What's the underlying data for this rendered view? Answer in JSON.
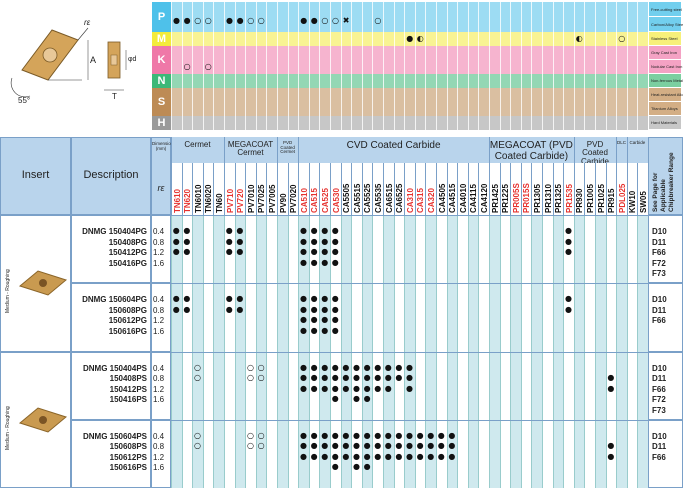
{
  "title": "",
  "iso_rows": [
    {
      "letter": "P",
      "color": "#4ec1ea",
      "sub": [
        {
          "label": "Free-cutting steel",
          "color": "#72cfee"
        },
        {
          "label": "Carbon/Alloy Steel",
          "color": "#72cfee"
        }
      ]
    },
    {
      "letter": "M",
      "color": "#f3eb3b",
      "sub": [
        {
          "label": "Stainless Steel",
          "color": "#f7f07a"
        }
      ]
    },
    {
      "letter": "K",
      "color": "#ef78a8",
      "sub": [
        {
          "label": "Gray Cast Iron",
          "color": "#f4a2c4"
        },
        {
          "label": "Nodular Cast Iron",
          "color": "#f4a2c4"
        }
      ]
    },
    {
      "letter": "N",
      "color": "#3cb878",
      "sub": [
        {
          "label": "Non-ferrous Metals",
          "color": "#7bcfa0"
        }
      ]
    },
    {
      "letter": "S",
      "color": "#bd8b55",
      "sub": [
        {
          "label": "Heat-resistant Alloys",
          "color": "#d3ae85"
        },
        {
          "label": "Titanium Alloys",
          "color": "#d3ae85"
        }
      ]
    },
    {
      "letter": "H",
      "color": "#9a9a9a",
      "sub": [
        {
          "label": "Hard Materials",
          "color": "#c7c7c7"
        }
      ]
    }
  ],
  "drawing": {
    "re_label": "rε",
    "a_label": "A",
    "t_label": "T",
    "d_label": "φd",
    "angle_label": "55°"
  },
  "header": {
    "insert": "Insert",
    "description": "Description",
    "dimension": "Dimension (mm)",
    "re": "rε",
    "groups": [
      {
        "label": "Cermet"
      },
      {
        "label": "MEGACOAT Cermet"
      },
      {
        "label": "PVD Coated Cermet"
      },
      {
        "label": "CVD Coated Carbide"
      },
      {
        "label": "MEGACOAT (PVD Coated Carbide)"
      },
      {
        "label": "PVD Coated Carbide"
      },
      {
        "label": "DLC"
      },
      {
        "label": "Carbide"
      }
    ],
    "see_page": "See Page for Applicable Chipbreaker Range",
    "see_page_short": "See Page for",
    "see_page_2": "Applicable",
    "see_page_3": "Chipbreaker Range"
  },
  "grades": [
    {
      "n": "TN610",
      "c": "#e6312e"
    },
    {
      "n": "TN620",
      "c": "#e6312e"
    },
    {
      "n": "TN6010",
      "c": "#111"
    },
    {
      "n": "TN6020",
      "c": "#111"
    },
    {
      "n": "TN60",
      "c": "#111"
    },
    {
      "n": "PV710",
      "c": "#e6312e"
    },
    {
      "n": "PV720",
      "c": "#e6312e"
    },
    {
      "n": "PV7010",
      "c": "#111"
    },
    {
      "n": "PV7025",
      "c": "#111"
    },
    {
      "n": "PV7005",
      "c": "#111"
    },
    {
      "n": "PV90",
      "c": "#111"
    },
    {
      "n": "PV7020",
      "c": "#111"
    },
    {
      "n": "CA510",
      "c": "#e6312e"
    },
    {
      "n": "CA515",
      "c": "#e6312e"
    },
    {
      "n": "CA525",
      "c": "#e6312e"
    },
    {
      "n": "CA530",
      "c": "#e6312e"
    },
    {
      "n": "CA5505",
      "c": "#111"
    },
    {
      "n": "CA5515",
      "c": "#111"
    },
    {
      "n": "CA5525",
      "c": "#111"
    },
    {
      "n": "CA5535",
      "c": "#111"
    },
    {
      "n": "CA6515",
      "c": "#111"
    },
    {
      "n": "CA6525",
      "c": "#111"
    },
    {
      "n": "CA310",
      "c": "#e6312e"
    },
    {
      "n": "CA315",
      "c": "#e6312e"
    },
    {
      "n": "CA320",
      "c": "#e6312e"
    },
    {
      "n": "CA4505",
      "c": "#111"
    },
    {
      "n": "CA4515",
      "c": "#111"
    },
    {
      "n": "CA4010",
      "c": "#111"
    },
    {
      "n": "CA4115",
      "c": "#111"
    },
    {
      "n": "CA4120",
      "c": "#111"
    },
    {
      "n": "PR1425",
      "c": "#111"
    },
    {
      "n": "PR1225",
      "c": "#111"
    },
    {
      "n": "PR005S",
      "c": "#e6312e"
    },
    {
      "n": "PR015S",
      "c": "#e6312e"
    },
    {
      "n": "PR1305",
      "c": "#111"
    },
    {
      "n": "PR1310",
      "c": "#111"
    },
    {
      "n": "PR1325",
      "c": "#111"
    },
    {
      "n": "PR1535",
      "c": "#e6312e"
    },
    {
      "n": "PR930",
      "c": "#111"
    },
    {
      "n": "PR1005",
      "c": "#111"
    },
    {
      "n": "PR1025",
      "c": "#111"
    },
    {
      "n": "PR915",
      "c": "#111"
    },
    {
      "n": "PDL025",
      "c": "#e6312e"
    },
    {
      "n": "KW10",
      "c": "#111"
    },
    {
      "n": "SW05",
      "c": "#111"
    }
  ],
  "iso_marks": {
    "P_row1": "●●○○  ●●○○  ●●○○✖ ○○",
    "M": "●●  ●",
    "K": "○○"
  },
  "sections": [
    {
      "side_label": "Medium - Roughing",
      "groups": [
        {
          "codes": [
            "DNMG 150404PG",
            "150408PG",
            "150412PG",
            "150416PG"
          ],
          "re": [
            "0.4",
            "0.8",
            "1.2",
            "1.6"
          ],
          "pages": [
            "D10",
            "D11",
            "F66",
            "F72",
            "F73"
          ]
        },
        {
          "codes": [
            "DNMG 150604PG",
            "150608PG",
            "150612PG",
            "150616PG"
          ],
          "re": [
            "0.4",
            "0.8",
            "1.2",
            "1.6"
          ],
          "pages": [
            "D10",
            "D11",
            "F66"
          ]
        }
      ]
    },
    {
      "side_label": "Medium - Roughing",
      "groups": [
        {
          "codes": [
            "DNMG 150404PS",
            "150408PS",
            "150412PS",
            "150416PS"
          ],
          "re": [
            "0.4",
            "0.8",
            "1.2",
            "1.6"
          ],
          "pages": [
            "D10",
            "D11",
            "F66",
            "F72",
            "F73"
          ]
        },
        {
          "codes": [
            "DNMG 150604PS",
            "150608PS",
            "150612PS",
            "150616PS"
          ],
          "re": [
            "0.4",
            "0.8",
            "1.2",
            "1.6"
          ],
          "pages": [
            "D10",
            "D11",
            "F66"
          ]
        }
      ]
    }
  ]
}
